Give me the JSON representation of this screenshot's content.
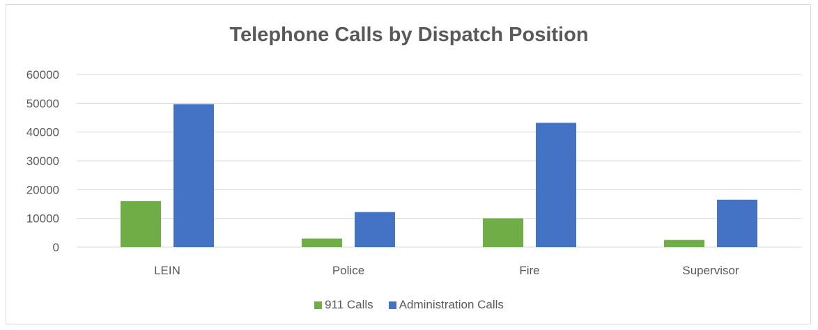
{
  "chart_data": {
    "type": "bar",
    "title": "Telephone Calls by Dispatch Position",
    "categories": [
      "LEIN",
      "Police",
      "Fire",
      "Supervisor"
    ],
    "series": [
      {
        "name": "911 Calls",
        "color": "#70ad47",
        "values": [
          16000,
          3000,
          10000,
          2500
        ]
      },
      {
        "name": "Administration Calls",
        "color": "#4472c4",
        "values": [
          49700,
          12200,
          43200,
          16500
        ]
      }
    ],
    "ylim": [
      0,
      60000
    ],
    "yticks": [
      "0",
      "10000",
      "20000",
      "30000",
      "40000",
      "50000",
      "60000"
    ],
    "grid": true,
    "legend_position": "bottom"
  }
}
